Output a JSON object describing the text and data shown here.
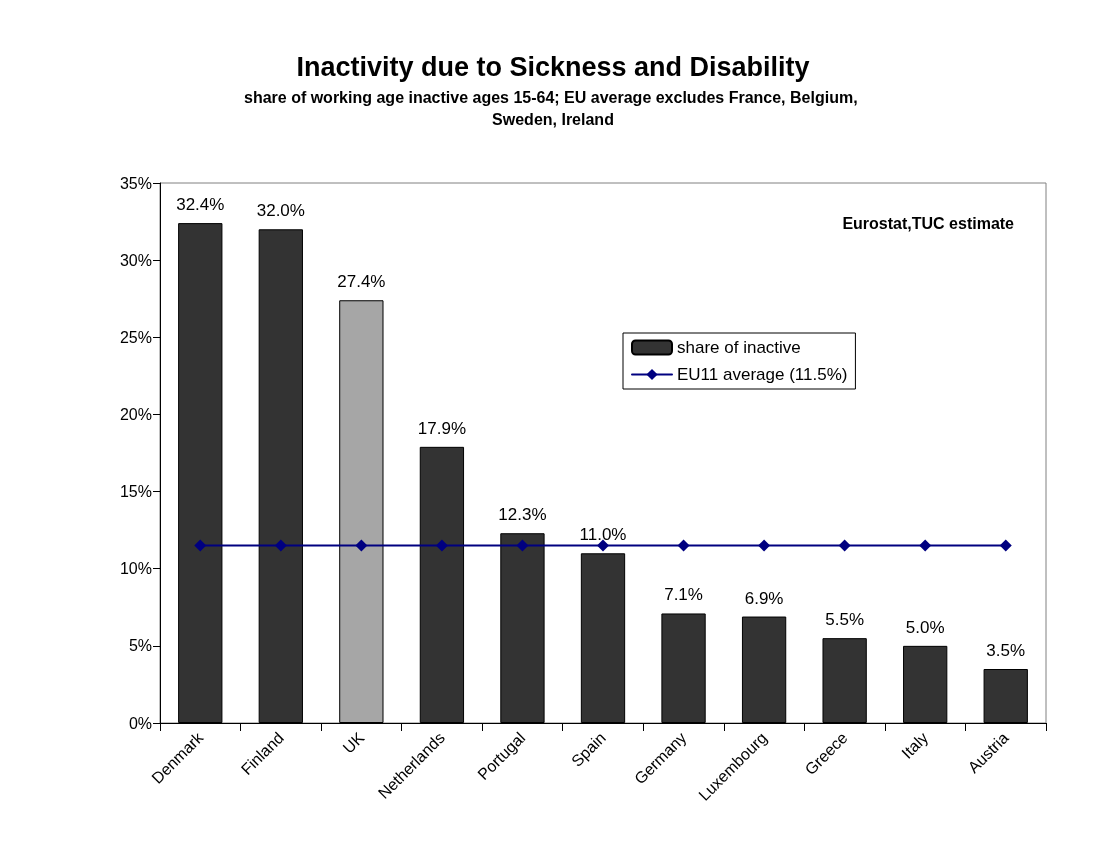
{
  "chart_data": {
    "type": "bar",
    "title": "Inactivity due to Sickness and Disability",
    "subtitle": "share of working age inactive ages 15-64; EU average excludes France, Belgium, Sweden, Ireland",
    "categories": [
      "Denmark",
      "Finland",
      "UK",
      "Netherlands",
      "Portugal",
      "Spain",
      "Germany",
      "Luxembourg",
      "Greece",
      "Italy",
      "Austria"
    ],
    "series": [
      {
        "name": "share of inactive",
        "color": "#333333",
        "colors": [
          "#333333",
          "#333333",
          "#a6a6a6",
          "#333333",
          "#333333",
          "#333333",
          "#333333",
          "#333333",
          "#333333",
          "#333333",
          "#333333"
        ],
        "values": [
          32.4,
          32.0,
          27.4,
          17.9,
          12.3,
          11.0,
          7.1,
          6.9,
          5.5,
          5.0,
          3.5
        ],
        "value_labels": [
          "32.4%",
          "32.0%",
          "27.4%",
          "17.9%",
          "12.3%",
          "11.0%",
          "7.1%",
          "6.9%",
          "5.5%",
          "5.0%",
          "3.5%"
        ]
      },
      {
        "name": "EU11 average (11.5%)",
        "type": "line",
        "color": "#000080",
        "marker": "diamond",
        "values": [
          11.5,
          11.5,
          11.5,
          11.5,
          11.5,
          11.5,
          11.5,
          11.5,
          11.5,
          11.5,
          11.5
        ]
      }
    ],
    "ylim": [
      0,
      35
    ],
    "yticks": [
      {
        "value": 0,
        "label": "0%"
      },
      {
        "value": 5,
        "label": "5%"
      },
      {
        "value": 10,
        "label": "10%"
      },
      {
        "value": 15,
        "label": "15%"
      },
      {
        "value": 20,
        "label": "20%"
      },
      {
        "value": 25,
        "label": "25%"
      },
      {
        "value": 30,
        "label": "30%"
      },
      {
        "value": 35,
        "label": "35%"
      }
    ],
    "grid": false,
    "legend": "right",
    "annotations": [
      "Eurostat,TUC estimate"
    ]
  }
}
